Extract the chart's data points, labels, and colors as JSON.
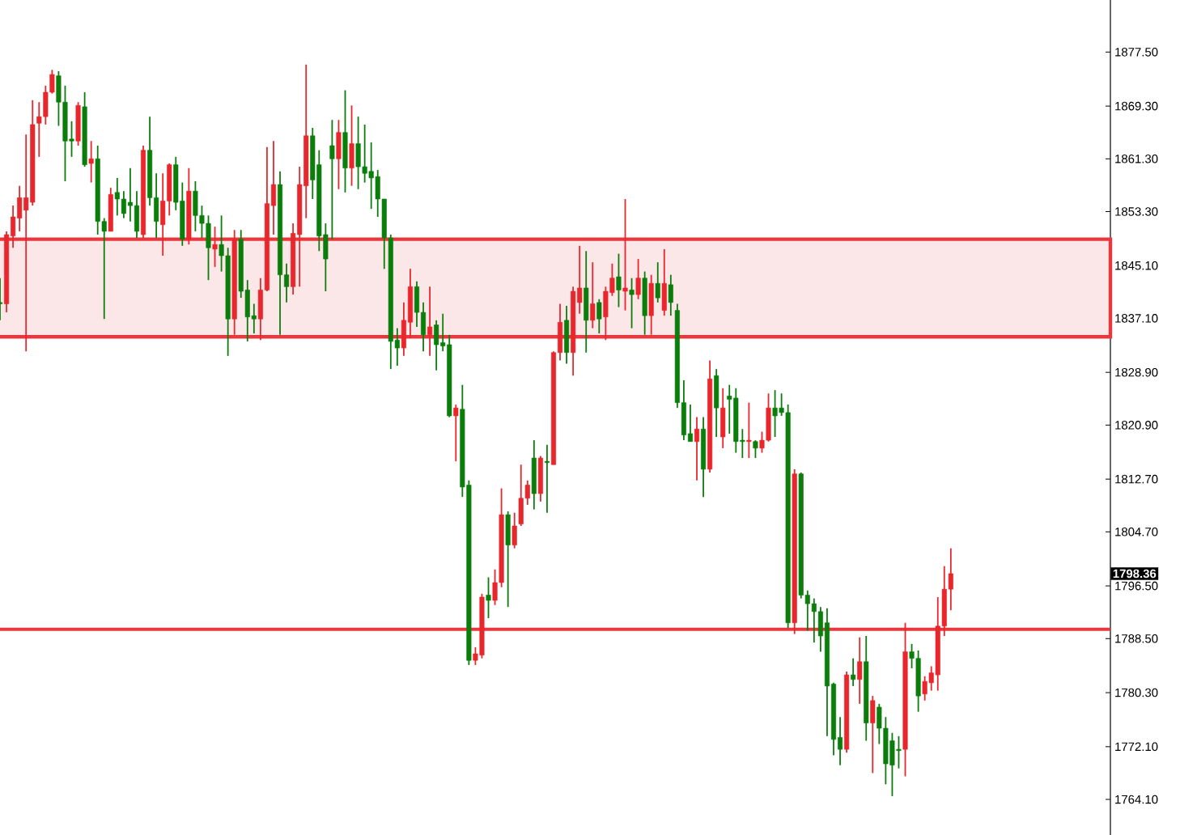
{
  "chart_data": {
    "type": "candlestick",
    "categories": [
      null,
      null,
      null,
      null,
      null,
      null,
      null,
      null,
      null,
      null,
      null,
      null,
      null,
      null,
      null,
      null,
      null,
      null,
      null,
      null,
      null,
      null,
      null,
      null,
      null,
      null,
      null,
      null,
      null,
      null,
      null,
      null,
      null,
      null,
      null,
      null,
      null,
      null,
      null,
      null,
      null,
      null,
      null,
      null,
      null,
      null,
      null,
      null,
      null,
      null,
      null,
      null,
      null,
      null,
      null,
      null,
      null,
      null,
      null,
      null,
      null,
      null,
      null,
      null,
      null,
      null,
      null,
      null,
      null,
      null,
      null,
      null,
      null,
      null,
      null,
      null,
      null,
      null,
      null,
      null,
      null,
      null,
      null,
      null,
      null,
      null,
      null,
      null,
      null,
      null,
      null,
      null,
      null,
      null,
      null,
      null,
      null,
      null,
      null,
      null,
      null,
      null,
      null,
      null,
      null,
      null,
      null,
      null,
      null,
      null,
      null,
      null,
      null,
      null,
      null,
      null,
      null,
      null,
      null,
      null,
      null,
      null,
      null,
      null,
      null,
      null,
      null,
      null,
      null,
      null,
      null,
      null,
      null,
      null,
      null,
      null,
      null,
      null,
      null,
      null,
      null,
      null,
      null,
      null,
      null,
      null,
      null,
      null,
      null,
      null,
      null,
      null,
      null,
      null,
      null,
      null,
      null,
      null,
      null,
      null,
      null,
      null,
      null,
      null,
      null,
      null,
      null,
      null,
      null,
      null,
      null
    ],
    "ohlc": [
      [
        1839.5,
        1843.2,
        1836.8,
        1839.3
      ],
      [
        1839.3,
        1850.3,
        1838.0,
        1849.8
      ],
      [
        1849.6,
        1854.2,
        1847.8,
        1852.5
      ],
      [
        1852.3,
        1857.2,
        1850.3,
        1855.4
      ],
      [
        1853.5,
        1865.0,
        1832.1,
        1855.4
      ],
      [
        1854.7,
        1870.2,
        1854.2,
        1866.5
      ],
      [
        1866.7,
        1869.9,
        1861.6,
        1867.7
      ],
      [
        1867.7,
        1872.4,
        1866.5,
        1871.4
      ],
      [
        1871.4,
        1874.8,
        1871.2,
        1874.1
      ],
      [
        1873.9,
        1874.6,
        1866.3,
        1869.9
      ],
      [
        1869.9,
        1872.4,
        1857.9,
        1864.0
      ],
      [
        1864.3,
        1867.0,
        1861.6,
        1864.0
      ],
      [
        1864.0,
        1869.9,
        1863.3,
        1869.4
      ],
      [
        1869.2,
        1871.4,
        1860.1,
        1860.4
      ],
      [
        1860.6,
        1864.0,
        1857.7,
        1861.3
      ],
      [
        1861.3,
        1863.3,
        1849.8,
        1851.8
      ],
      [
        1851.8,
        1852.3,
        1837.0,
        1850.3
      ],
      [
        1850.3,
        1856.9,
        1850.3,
        1855.9
      ],
      [
        1856.2,
        1858.4,
        1852.7,
        1855.2
      ],
      [
        1855.2,
        1856.4,
        1852.3,
        1853.0
      ],
      [
        1854.7,
        1859.9,
        1851.8,
        1854.2
      ],
      [
        1854.2,
        1856.4,
        1849.3,
        1850.3
      ],
      [
        1849.8,
        1863.3,
        1849.3,
        1862.6
      ],
      [
        1862.6,
        1867.7,
        1854.2,
        1855.4
      ],
      [
        1855.4,
        1859.1,
        1849.3,
        1851.8
      ],
      [
        1851.3,
        1859.1,
        1846.6,
        1854.9
      ],
      [
        1854.9,
        1860.6,
        1852.7,
        1860.4
      ],
      [
        1860.4,
        1861.6,
        1853.5,
        1854.7
      ],
      [
        1854.9,
        1857.7,
        1848.1,
        1849.1
      ],
      [
        1849.1,
        1859.9,
        1848.3,
        1856.4
      ],
      [
        1856.4,
        1857.9,
        1850.3,
        1852.7
      ],
      [
        1852.7,
        1854.2,
        1849.3,
        1851.5
      ],
      [
        1851.5,
        1852.7,
        1842.9,
        1847.8
      ],
      [
        1847.6,
        1851.0,
        1844.9,
        1848.3
      ],
      [
        1848.3,
        1852.7,
        1844.2,
        1846.6
      ],
      [
        1846.6,
        1847.8,
        1831.4,
        1837.0
      ],
      [
        1837.0,
        1850.5,
        1834.6,
        1849.1
      ],
      [
        1849.1,
        1850.5,
        1840.2,
        1841.2
      ],
      [
        1841.4,
        1842.9,
        1833.6,
        1837.3
      ],
      [
        1837.5,
        1839.3,
        1834.8,
        1837.0
      ],
      [
        1837.0,
        1843.2,
        1833.8,
        1841.4
      ],
      [
        1841.4,
        1863.1,
        1841.2,
        1854.5
      ],
      [
        1854.2,
        1864.0,
        1849.8,
        1857.4
      ],
      [
        1857.4,
        1859.4,
        1834.6,
        1843.7
      ],
      [
        1843.7,
        1845.4,
        1839.5,
        1841.9
      ],
      [
        1841.9,
        1851.5,
        1840.7,
        1850.0
      ],
      [
        1849.8,
        1860.1,
        1841.9,
        1857.4
      ],
      [
        1857.2,
        1875.6,
        1852.3,
        1864.8
      ],
      [
        1864.8,
        1866.0,
        1855.2,
        1858.1
      ],
      [
        1860.4,
        1862.6,
        1847.3,
        1849.6
      ],
      [
        1849.8,
        1851.5,
        1841.2,
        1846.1
      ],
      [
        1863.3,
        1867.2,
        1849.1,
        1861.3
      ],
      [
        1861.3,
        1867.2,
        1856.7,
        1865.3
      ],
      [
        1865.3,
        1871.7,
        1856.2,
        1859.9
      ],
      [
        1859.9,
        1869.4,
        1857.2,
        1863.6
      ],
      [
        1863.6,
        1867.7,
        1856.7,
        1860.1
      ],
      [
        1860.1,
        1866.5,
        1857.7,
        1859.1
      ],
      [
        1859.4,
        1863.8,
        1853.7,
        1858.4
      ],
      [
        1858.6,
        1859.6,
        1852.5,
        1855.2
      ],
      [
        1855.2,
        1855.2,
        1844.6,
        1849.3
      ],
      [
        1849.3,
        1849.8,
        1829.4,
        1833.6
      ],
      [
        1833.8,
        1835.6,
        1829.9,
        1832.6
      ],
      [
        1832.6,
        1839.5,
        1831.4,
        1836.8
      ],
      [
        1836.5,
        1844.6,
        1834.1,
        1841.9
      ],
      [
        1841.9,
        1842.7,
        1835.8,
        1838.0
      ],
      [
        1838.0,
        1839.5,
        1832.1,
        1834.6
      ],
      [
        1834.6,
        1841.9,
        1831.4,
        1835.8
      ],
      [
        1836.1,
        1836.8,
        1829.2,
        1833.1
      ],
      [
        1833.4,
        1837.8,
        1832.1,
        1832.9
      ],
      [
        1833.1,
        1834.6,
        1822.1,
        1822.3
      ],
      [
        1822.3,
        1824.0,
        1815.4,
        1823.5
      ],
      [
        1823.3,
        1827.0,
        1810.0,
        1811.5
      ],
      [
        1811.8,
        1812.5,
        1784.5,
        1785.2
      ],
      [
        1785.2,
        1787.2,
        1784.5,
        1786.2
      ],
      [
        1786.0,
        1795.3,
        1785.5,
        1794.8
      ],
      [
        1795.1,
        1797.8,
        1791.6,
        1794.3
      ],
      [
        1794.3,
        1799.0,
        1793.6,
        1797.0
      ],
      [
        1797.0,
        1811.3,
        1796.3,
        1807.3
      ],
      [
        1807.3,
        1807.8,
        1793.3,
        1802.7
      ],
      [
        1802.7,
        1807.6,
        1802.2,
        1805.6
      ],
      [
        1805.9,
        1814.9,
        1805.6,
        1809.8
      ],
      [
        1809.8,
        1812.5,
        1808.8,
        1811.8
      ],
      [
        1815.9,
        1818.6,
        1808.1,
        1810.5
      ],
      [
        1810.5,
        1816.2,
        1809.3,
        1815.9
      ],
      [
        1815.4,
        1817.9,
        1807.6,
        1815.2
      ],
      [
        1814.9,
        1832.1,
        1814.9,
        1831.9
      ],
      [
        1831.9,
        1839.3,
        1830.7,
        1836.5
      ],
      [
        1836.8,
        1839.0,
        1830.2,
        1831.9
      ],
      [
        1831.9,
        1841.9,
        1828.4,
        1841.2
      ],
      [
        1839.5,
        1848.1,
        1837.8,
        1841.7
      ],
      [
        1841.7,
        1847.3,
        1831.9,
        1836.8
      ],
      [
        1836.8,
        1845.6,
        1835.6,
        1839.3
      ],
      [
        1839.5,
        1840.0,
        1834.8,
        1837.0
      ],
      [
        1837.3,
        1841.9,
        1833.8,
        1841.2
      ],
      [
        1841.0,
        1845.4,
        1840.5,
        1843.2
      ],
      [
        1843.4,
        1846.9,
        1838.8,
        1841.4
      ],
      [
        1841.2,
        1855.2,
        1838.3,
        1841.7
      ],
      [
        1841.4,
        1843.2,
        1835.6,
        1840.7
      ],
      [
        1840.7,
        1846.1,
        1840.0,
        1843.2
      ],
      [
        1843.2,
        1844.2,
        1834.6,
        1837.5
      ],
      [
        1837.5,
        1843.7,
        1834.6,
        1842.4
      ],
      [
        1842.4,
        1845.6,
        1839.5,
        1840.2
      ],
      [
        1838.3,
        1847.6,
        1837.5,
        1842.4
      ],
      [
        1842.2,
        1843.7,
        1837.5,
        1839.5
      ],
      [
        1838.3,
        1839.3,
        1823.5,
        1824.3
      ],
      [
        1824.3,
        1827.7,
        1818.6,
        1819.4
      ],
      [
        1819.6,
        1824.0,
        1818.4,
        1818.4
      ],
      [
        1818.4,
        1822.1,
        1812.5,
        1820.3
      ],
      [
        1820.3,
        1822.1,
        1810.0,
        1814.2
      ],
      [
        1814.2,
        1830.7,
        1813.7,
        1827.9
      ],
      [
        1828.4,
        1829.4,
        1819.1,
        1823.5
      ],
      [
        1819.1,
        1826.5,
        1817.4,
        1823.5
      ],
      [
        1825.3,
        1827.0,
        1819.6,
        1824.8
      ],
      [
        1825.0,
        1826.5,
        1816.7,
        1818.4
      ],
      [
        1818.6,
        1820.3,
        1815.9,
        1818.4
      ],
      [
        1818.4,
        1824.3,
        1815.9,
        1818.6
      ],
      [
        1818.4,
        1818.6,
        1815.9,
        1817.4
      ],
      [
        1817.4,
        1819.9,
        1816.7,
        1818.6
      ],
      [
        1818.6,
        1825.7,
        1818.4,
        1823.5
      ],
      [
        1823.5,
        1826.2,
        1819.1,
        1822.3
      ],
      [
        1823.5,
        1825.7,
        1822.3,
        1822.8
      ],
      [
        1822.8,
        1824.0,
        1790.1,
        1790.9
      ],
      [
        1790.9,
        1814.2,
        1789.2,
        1813.5
      ],
      [
        1813.5,
        1813.7,
        1794.6,
        1795.1
      ],
      [
        1795.1,
        1795.8,
        1789.7,
        1793.8
      ],
      [
        1793.8,
        1794.6,
        1787.9,
        1792.6
      ],
      [
        1792.6,
        1793.3,
        1786.5,
        1788.9
      ],
      [
        1790.9,
        1793.1,
        1773.7,
        1781.3
      ],
      [
        1781.6,
        1781.8,
        1770.8,
        1773.2
      ],
      [
        1773.5,
        1776.6,
        1769.3,
        1771.7
      ],
      [
        1771.7,
        1783.5,
        1771.2,
        1783.0
      ],
      [
        1783.0,
        1785.5,
        1781.3,
        1782.3
      ],
      [
        1782.3,
        1788.7,
        1778.6,
        1785.0
      ],
      [
        1785.0,
        1788.9,
        1773.0,
        1775.7
      ],
      [
        1775.7,
        1779.8,
        1768.1,
        1779.1
      ],
      [
        1778.1,
        1778.6,
        1772.5,
        1774.9
      ],
      [
        1774.9,
        1776.6,
        1766.4,
        1769.5
      ],
      [
        1773.0,
        1774.2,
        1764.6,
        1769.3
      ],
      [
        1771.7,
        1773.7,
        1768.8,
        1771.5
      ],
      [
        1771.7,
        1790.9,
        1767.6,
        1786.5
      ],
      [
        1786.5,
        1787.7,
        1784.0,
        1785.5
      ],
      [
        1785.5,
        1786.7,
        1777.4,
        1779.8
      ],
      [
        1780.1,
        1782.8,
        1779.1,
        1782.0
      ],
      [
        1781.8,
        1784.3,
        1780.6,
        1783.3
      ],
      [
        1783.0,
        1794.8,
        1780.6,
        1790.4
      ],
      [
        1790.4,
        1799.5,
        1788.9,
        1796.0
      ],
      [
        1796.0,
        1802.2,
        1792.8,
        1798.36
      ],
      null,
      null,
      null,
      null,
      null,
      null,
      null,
      null,
      null,
      null,
      null,
      null,
      null,
      null,
      null,
      null,
      null,
      null,
      null,
      null,
      null,
      null,
      null,
      null
    ],
    "colors": [
      "#0b7d0b",
      "#e8262c",
      "#e8262c",
      "#e8262c",
      "#e8262c",
      "#e8262c",
      "#e8262c",
      "#e8262c",
      "#e8262c",
      "#0b7d0b",
      "#0b7d0b",
      "#0b7d0b",
      "#e8262c",
      "#0b7d0b",
      "#e8262c",
      "#0b7d0b",
      "#0b7d0b",
      "#e8262c",
      "#0b7d0b",
      "#0b7d0b",
      "#0b7d0b",
      "#0b7d0b",
      "#e8262c",
      "#0b7d0b",
      "#0b7d0b",
      "#e8262c",
      "#e8262c",
      "#0b7d0b",
      "#0b7d0b",
      "#e8262c",
      "#0b7d0b",
      "#0b7d0b",
      "#0b7d0b",
      "#e8262c",
      "#0b7d0b",
      "#0b7d0b",
      "#e8262c",
      "#0b7d0b",
      "#0b7d0b",
      "#0b7d0b",
      "#e8262c",
      "#e8262c",
      "#e8262c",
      "#0b7d0b",
      "#0b7d0b",
      "#e8262c",
      "#e8262c",
      "#e8262c",
      "#0b7d0b",
      "#0b7d0b",
      "#0b7d0b",
      "#0b7d0b",
      "#e8262c",
      "#0b7d0b",
      "#e8262c",
      "#0b7d0b",
      "#0b7d0b",
      "#0b7d0b",
      "#0b7d0b",
      "#0b7d0b",
      "#0b7d0b",
      "#0b7d0b",
      "#e8262c",
      "#e8262c",
      "#0b7d0b",
      "#0b7d0b",
      "#e8262c",
      "#0b7d0b",
      "#0b7d0b",
      "#0b7d0b",
      "#e8262c",
      "#0b7d0b",
      "#0b7d0b",
      "#e8262c",
      "#e8262c",
      "#0b7d0b",
      "#e8262c",
      "#e8262c",
      "#0b7d0b",
      "#e8262c",
      "#e8262c",
      "#e8262c",
      "#0b7d0b",
      "#e8262c",
      "#0b7d0b",
      "#e8262c",
      "#e8262c",
      "#0b7d0b",
      "#e8262c",
      "#e8262c",
      "#0b7d0b",
      "#e8262c",
      "#0b7d0b",
      "#e8262c",
      "#e8262c",
      "#0b7d0b",
      "#e8262c",
      "#0b7d0b",
      "#e8262c",
      "#0b7d0b",
      "#e8262c",
      "#0b7d0b",
      "#e8262c",
      "#0b7d0b",
      "#0b7d0b",
      "#0b7d0b",
      "#0b7d0b",
      "#e8262c",
      "#0b7d0b",
      "#e8262c",
      "#0b7d0b",
      "#e8262c",
      "#0b7d0b",
      "#0b7d0b",
      "#0b7d0b",
      "#e8262c",
      "#0b7d0b",
      "#e8262c",
      "#e8262c",
      "#0b7d0b",
      "#0b7d0b",
      "#0b7d0b",
      "#e8262c",
      "#0b7d0b",
      "#0b7d0b",
      "#0b7d0b",
      "#0b7d0b",
      "#0b7d0b",
      "#0b7d0b",
      "#0b7d0b",
      "#e8262c",
      "#0b7d0b",
      "#e8262c",
      "#0b7d0b",
      "#e8262c",
      "#0b7d0b",
      "#0b7d0b",
      "#0b7d0b",
      "#0b7d0b",
      "#e8262c",
      "#0b7d0b",
      "#0b7d0b",
      "#e8262c",
      "#e8262c",
      "#e8262c",
      "#e8262c",
      "#e8262c",
      null,
      null,
      null,
      null,
      null,
      null,
      null,
      null,
      null,
      null,
      null,
      null,
      null,
      null,
      null,
      null,
      null,
      null,
      null,
      null,
      null,
      null,
      null,
      null
    ],
    "ylim": [
      1758.7,
      1885.4
    ],
    "yticks": [
      {
        "value": 1764.1,
        "label": "1764.10"
      },
      {
        "value": 1772.1,
        "label": "1772.10"
      },
      {
        "value": 1780.3,
        "label": "1780.30"
      },
      {
        "value": 1788.5,
        "label": "1788.50"
      },
      {
        "value": 1796.5,
        "label": "1796.50"
      },
      {
        "value": 1804.7,
        "label": "1804.70"
      },
      {
        "value": 1812.7,
        "label": "1812.70"
      },
      {
        "value": 1820.9,
        "label": "1820.90"
      },
      {
        "value": 1828.9,
        "label": "1828.90"
      },
      {
        "value": 1837.1,
        "label": "1837.10"
      },
      {
        "value": 1845.1,
        "label": "1845.10"
      },
      {
        "value": 1853.3,
        "label": "1853.30"
      },
      {
        "value": 1861.3,
        "label": "1861.30"
      },
      {
        "value": 1869.3,
        "label": "1869.30"
      },
      {
        "value": 1877.5,
        "label": "1877.50"
      }
    ],
    "ref_lines": [
      {
        "axis": "y",
        "value": 1789.9,
        "color": "#e8383d"
      }
    ],
    "bands": [
      {
        "axis": "y",
        "from": 1834.3,
        "to": 1849.1,
        "color": "#e8383d"
      }
    ],
    "annotations": [
      "1798.36"
    ]
  }
}
